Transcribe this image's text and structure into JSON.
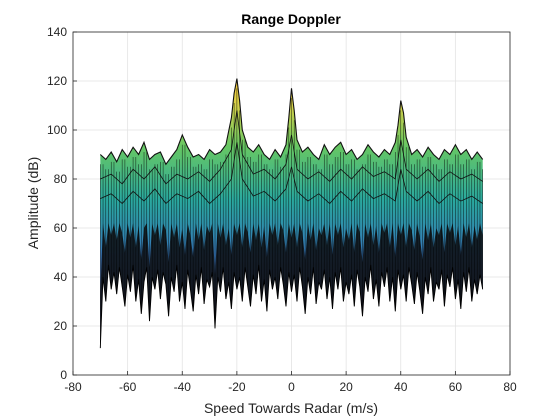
{
  "chart_data": {
    "type": "line",
    "title": "Range Doppler",
    "xlabel": "Speed Towards Radar (m/s)",
    "ylabel": "Amplitude (dB)",
    "xlim": [
      -80,
      80
    ],
    "ylim": [
      0,
      140
    ],
    "x_ticks": [
      "-80",
      "-60",
      "-40",
      "-20",
      "0",
      "20",
      "40",
      "60",
      "80"
    ],
    "y_ticks": [
      "0",
      "20",
      "40",
      "60",
      "80",
      "100",
      "120",
      "140"
    ],
    "grid": true,
    "x_range": [
      -70,
      70
    ],
    "series": [
      {
        "role": "upper-envelope",
        "points": [
          [
            -70,
            90
          ],
          [
            -68,
            88
          ],
          [
            -66,
            91
          ],
          [
            -64,
            87
          ],
          [
            -62,
            92
          ],
          [
            -60,
            89
          ],
          [
            -58,
            93
          ],
          [
            -56,
            90
          ],
          [
            -54,
            95
          ],
          [
            -52,
            88
          ],
          [
            -50,
            90
          ],
          [
            -48,
            91
          ],
          [
            -46,
            86
          ],
          [
            -44,
            89
          ],
          [
            -42,
            92
          ],
          [
            -40,
            98
          ],
          [
            -38,
            93
          ],
          [
            -36,
            89
          ],
          [
            -34,
            90
          ],
          [
            -32,
            88
          ],
          [
            -30,
            92
          ],
          [
            -28,
            90
          ],
          [
            -26,
            91
          ],
          [
            -24,
            94
          ],
          [
            -22,
            105
          ],
          [
            -21,
            115
          ],
          [
            -20,
            121
          ],
          [
            -19,
            112
          ],
          [
            -18,
            100
          ],
          [
            -16,
            93
          ],
          [
            -14,
            91
          ],
          [
            -12,
            94
          ],
          [
            -10,
            90
          ],
          [
            -8,
            88
          ],
          [
            -6,
            92
          ],
          [
            -4,
            89
          ],
          [
            -2,
            94
          ],
          [
            -1,
            105
          ],
          [
            0,
            117
          ],
          [
            1,
            108
          ],
          [
            2,
            96
          ],
          [
            4,
            91
          ],
          [
            6,
            93
          ],
          [
            8,
            90
          ],
          [
            10,
            88
          ],
          [
            12,
            94
          ],
          [
            14,
            90
          ],
          [
            16,
            93
          ],
          [
            18,
            95
          ],
          [
            20,
            90
          ],
          [
            22,
            92
          ],
          [
            24,
            88
          ],
          [
            26,
            90
          ],
          [
            28,
            94
          ],
          [
            30,
            91
          ],
          [
            32,
            89
          ],
          [
            34,
            92
          ],
          [
            36,
            90
          ],
          [
            38,
            95
          ],
          [
            39,
            102
          ],
          [
            40,
            112
          ],
          [
            41,
            107
          ],
          [
            42,
            97
          ],
          [
            44,
            90
          ],
          [
            46,
            92
          ],
          [
            48,
            89
          ],
          [
            50,
            93
          ],
          [
            52,
            90
          ],
          [
            54,
            88
          ],
          [
            56,
            92
          ],
          [
            58,
            90
          ],
          [
            60,
            94
          ],
          [
            62,
            90
          ],
          [
            64,
            92
          ],
          [
            66,
            88
          ],
          [
            68,
            91
          ],
          [
            70,
            88
          ]
        ]
      },
      {
        "role": "inner-ridge",
        "points": [
          [
            -70,
            80
          ],
          [
            -66,
            82
          ],
          [
            -62,
            78
          ],
          [
            -58,
            84
          ],
          [
            -54,
            80
          ],
          [
            -50,
            85
          ],
          [
            -46,
            78
          ],
          [
            -42,
            82
          ],
          [
            -38,
            80
          ],
          [
            -34,
            83
          ],
          [
            -30,
            79
          ],
          [
            -26,
            84
          ],
          [
            -22,
            92
          ],
          [
            -20,
            108
          ],
          [
            -18,
            90
          ],
          [
            -14,
            82
          ],
          [
            -10,
            84
          ],
          [
            -6,
            80
          ],
          [
            -2,
            86
          ],
          [
            0,
            98
          ],
          [
            2,
            84
          ],
          [
            6,
            80
          ],
          [
            10,
            83
          ],
          [
            14,
            79
          ],
          [
            18,
            84
          ],
          [
            22,
            80
          ],
          [
            26,
            85
          ],
          [
            30,
            81
          ],
          [
            34,
            83
          ],
          [
            38,
            80
          ],
          [
            40,
            96
          ],
          [
            42,
            84
          ],
          [
            46,
            80
          ],
          [
            50,
            84
          ],
          [
            54,
            79
          ],
          [
            58,
            83
          ],
          [
            62,
            80
          ],
          [
            66,
            82
          ],
          [
            70,
            79
          ]
        ]
      },
      {
        "role": "inner-ridge",
        "points": [
          [
            -70,
            72
          ],
          [
            -66,
            74
          ],
          [
            -62,
            70
          ],
          [
            -58,
            75
          ],
          [
            -54,
            71
          ],
          [
            -50,
            76
          ],
          [
            -46,
            70
          ],
          [
            -42,
            74
          ],
          [
            -38,
            72
          ],
          [
            -34,
            75
          ],
          [
            -30,
            70
          ],
          [
            -26,
            74
          ],
          [
            -22,
            80
          ],
          [
            -20,
            95
          ],
          [
            -18,
            80
          ],
          [
            -14,
            73
          ],
          [
            -10,
            75
          ],
          [
            -6,
            71
          ],
          [
            -2,
            76
          ],
          [
            0,
            85
          ],
          [
            2,
            75
          ],
          [
            6,
            71
          ],
          [
            10,
            74
          ],
          [
            14,
            70
          ],
          [
            18,
            75
          ],
          [
            22,
            71
          ],
          [
            26,
            76
          ],
          [
            30,
            72
          ],
          [
            34,
            74
          ],
          [
            38,
            71
          ],
          [
            40,
            84
          ],
          [
            42,
            75
          ],
          [
            46,
            71
          ],
          [
            50,
            75
          ],
          [
            54,
            70
          ],
          [
            58,
            74
          ],
          [
            62,
            71
          ],
          [
            66,
            73
          ],
          [
            70,
            70
          ]
        ]
      },
      {
        "role": "noise-floor",
        "points": [
          [
            -70,
            11
          ],
          [
            -69,
            40
          ],
          [
            -68,
            30
          ],
          [
            -67,
            45
          ],
          [
            -66,
            35
          ],
          [
            -65,
            42
          ],
          [
            -64,
            33
          ],
          [
            -63,
            44
          ],
          [
            -62,
            36
          ],
          [
            -61,
            28
          ],
          [
            -60,
            41
          ],
          [
            -59,
            34
          ],
          [
            -58,
            45
          ],
          [
            -57,
            30
          ],
          [
            -56,
            39
          ],
          [
            -55,
            25
          ],
          [
            -54,
            38
          ],
          [
            -53,
            44
          ],
          [
            -52,
            22
          ],
          [
            -51,
            40
          ],
          [
            -50,
            35
          ],
          [
            -49,
            43
          ],
          [
            -48,
            31
          ],
          [
            -47,
            42
          ],
          [
            -46,
            37
          ],
          [
            -45,
            24
          ],
          [
            -44,
            40
          ],
          [
            -43,
            34
          ],
          [
            -42,
            45
          ],
          [
            -41,
            30
          ],
          [
            -40,
            38
          ],
          [
            -39,
            27
          ],
          [
            -38,
            43
          ],
          [
            -37,
            35
          ],
          [
            -36,
            26
          ],
          [
            -35,
            41
          ],
          [
            -34,
            33
          ],
          [
            -33,
            44
          ],
          [
            -32,
            29
          ],
          [
            -31,
            39
          ],
          [
            -30,
            36
          ],
          [
            -29,
            42
          ],
          [
            -28,
            19
          ],
          [
            -27,
            40
          ],
          [
            -26,
            34
          ],
          [
            -25,
            44
          ],
          [
            -24,
            31
          ],
          [
            -23,
            38
          ],
          [
            -22,
            27
          ],
          [
            -21,
            42
          ],
          [
            -20,
            35
          ],
          [
            -19,
            40
          ],
          [
            -18,
            30
          ],
          [
            -17,
            44
          ],
          [
            -16,
            36
          ],
          [
            -15,
            28
          ],
          [
            -14,
            41
          ],
          [
            -13,
            33
          ],
          [
            -12,
            45
          ],
          [
            -11,
            30
          ],
          [
            -10,
            39
          ],
          [
            -9,
            26
          ],
          [
            -8,
            43
          ],
          [
            -7,
            35
          ],
          [
            -6,
            40
          ],
          [
            -5,
            31
          ],
          [
            -4,
            44
          ],
          [
            -3,
            37
          ],
          [
            -2,
            28
          ],
          [
            -1,
            42
          ],
          [
            0,
            34
          ],
          [
            1,
            41
          ],
          [
            2,
            30
          ],
          [
            3,
            44
          ],
          [
            4,
            36
          ],
          [
            5,
            25
          ],
          [
            6,
            40
          ],
          [
            7,
            33
          ],
          [
            8,
            44
          ],
          [
            9,
            29
          ],
          [
            10,
            38
          ],
          [
            11,
            35
          ],
          [
            12,
            43
          ],
          [
            13,
            31
          ],
          [
            14,
            40
          ],
          [
            15,
            27
          ],
          [
            16,
            42
          ],
          [
            17,
            35
          ],
          [
            18,
            44
          ],
          [
            19,
            30
          ],
          [
            20,
            38
          ],
          [
            21,
            33
          ],
          [
            22,
            41
          ],
          [
            23,
            28
          ],
          [
            24,
            43
          ],
          [
            25,
            36
          ],
          [
            26,
            24
          ],
          [
            27,
            40
          ],
          [
            28,
            34
          ],
          [
            29,
            45
          ],
          [
            30,
            31
          ],
          [
            31,
            39
          ],
          [
            32,
            28
          ],
          [
            33,
            42
          ],
          [
            34,
            36
          ],
          [
            35,
            44
          ],
          [
            36,
            30
          ],
          [
            37,
            40
          ],
          [
            38,
            26
          ],
          [
            39,
            43
          ],
          [
            40,
            35
          ],
          [
            41,
            41
          ],
          [
            42,
            30
          ],
          [
            43,
            44
          ],
          [
            44,
            37
          ],
          [
            45,
            29
          ],
          [
            46,
            42
          ],
          [
            47,
            34
          ],
          [
            48,
            25
          ],
          [
            49,
            40
          ],
          [
            50,
            33
          ],
          [
            51,
            44
          ],
          [
            52,
            30
          ],
          [
            53,
            38
          ],
          [
            54,
            35
          ],
          [
            55,
            43
          ],
          [
            56,
            28
          ],
          [
            57,
            41
          ],
          [
            58,
            36
          ],
          [
            59,
            44
          ],
          [
            60,
            31
          ],
          [
            61,
            39
          ],
          [
            62,
            27
          ],
          [
            63,
            42
          ],
          [
            64,
            34
          ],
          [
            65,
            44
          ],
          [
            66,
            30
          ],
          [
            67,
            39
          ],
          [
            68,
            33
          ],
          [
            69,
            41
          ],
          [
            70,
            35
          ]
        ]
      }
    ]
  }
}
